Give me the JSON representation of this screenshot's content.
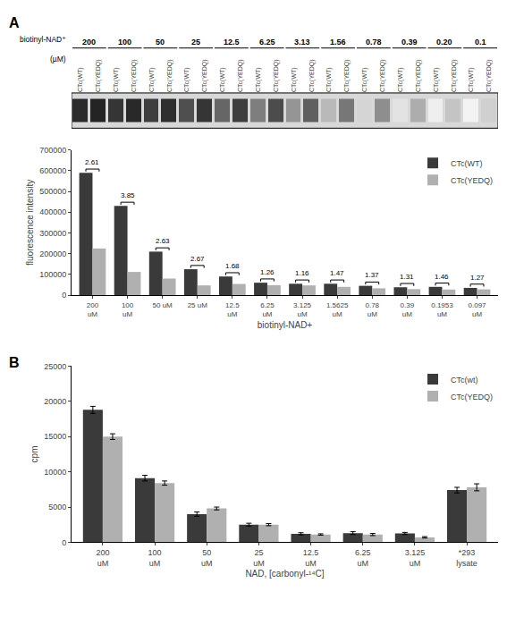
{
  "chart_data": [
    {
      "type": "heatmap",
      "categories": [
        "200",
        "100",
        "50",
        "25",
        "12.5",
        "6.25",
        "3.13",
        "1.56",
        "0.78",
        "0.39",
        "0.20",
        "0.1"
      ],
      "series": [
        {
          "name": "CTc(WT)",
          "values": [
            0.9,
            0.86,
            0.82,
            0.75,
            0.65,
            0.55,
            0.45,
            0.3,
            0.18,
            0.12,
            0.07,
            0.05
          ]
        },
        {
          "name": "CTc(YEDQ)",
          "values": [
            0.93,
            0.91,
            0.89,
            0.86,
            0.82,
            0.76,
            0.68,
            0.58,
            0.48,
            0.35,
            0.25,
            0.2
          ]
        }
      ],
      "annotations": [
        "biotinyl-NAD⁺",
        "(µM)"
      ]
    },
    {
      "type": "bar",
      "title": "A",
      "categories": [
        "200\nuM",
        "100\nuM",
        "50 uM",
        "25 uM",
        "12.5\nuM",
        "6.25\nuM",
        "3.125\nuM",
        "1.5625\nuM",
        "0.78\nuM",
        "0.39\nuM",
        "0.1953\nuM",
        "0.097\nuM"
      ],
      "series": [
        {
          "name": "CTc(WT)",
          "color": "#3a3a3a",
          "values": [
            590000,
            430000,
            210000,
            125000,
            90000,
            60000,
            55000,
            55000,
            45000,
            38000,
            40000,
            35000
          ]
        },
        {
          "name": "CTc(YEDQ)",
          "color": "#b0b0b0",
          "values": [
            225000,
            112000,
            80000,
            47000,
            54000,
            48000,
            47000,
            40000,
            33000,
            29000,
            27000,
            28000
          ]
        }
      ],
      "annotations": [
        "2.61",
        "3.85",
        "2.63",
        "2.67",
        "1.68",
        "1.26",
        "1.16",
        "1.47",
        "1.37",
        "1.31",
        "1.46",
        "1.27"
      ],
      "x_label": "biotinyl-NAD+",
      "y_label": "fluorescence intensity",
      "ylim": [
        0,
        700000
      ],
      "yticks": [
        0,
        100000,
        200000,
        300000,
        400000,
        500000,
        600000,
        700000
      ],
      "grid": false,
      "legend": "upper right"
    },
    {
      "type": "bar",
      "title": "B",
      "categories": [
        "200\nuM",
        "100\nuM",
        "50\nuM",
        "25\nuM",
        "12.5\nuM",
        "6.25\nuM",
        "3.125\nuM",
        "*293\nlysate"
      ],
      "series": [
        {
          "name": "CTc(wt)",
          "color": "#3a3a3a",
          "values": [
            18800,
            9100,
            4000,
            2500,
            1200,
            1300,
            1250,
            7400
          ],
          "errors": [
            500,
            400,
            300,
            200,
            150,
            200,
            150,
            400
          ]
        },
        {
          "name": "CTc(YEDQ)",
          "color": "#b0b0b0",
          "values": [
            15000,
            8400,
            4800,
            2500,
            1100,
            1100,
            700,
            7800
          ],
          "errors": [
            400,
            300,
            200,
            150,
            100,
            150,
            100,
            500
          ]
        }
      ],
      "x_label": "NAD, [carbonyl-¹⁴C]",
      "y_label": "cpm",
      "ylim": [
        0,
        25000
      ],
      "yticks": [
        0,
        5000,
        10000,
        15000,
        20000,
        25000
      ],
      "grid": false,
      "legend": "upper right"
    }
  ]
}
